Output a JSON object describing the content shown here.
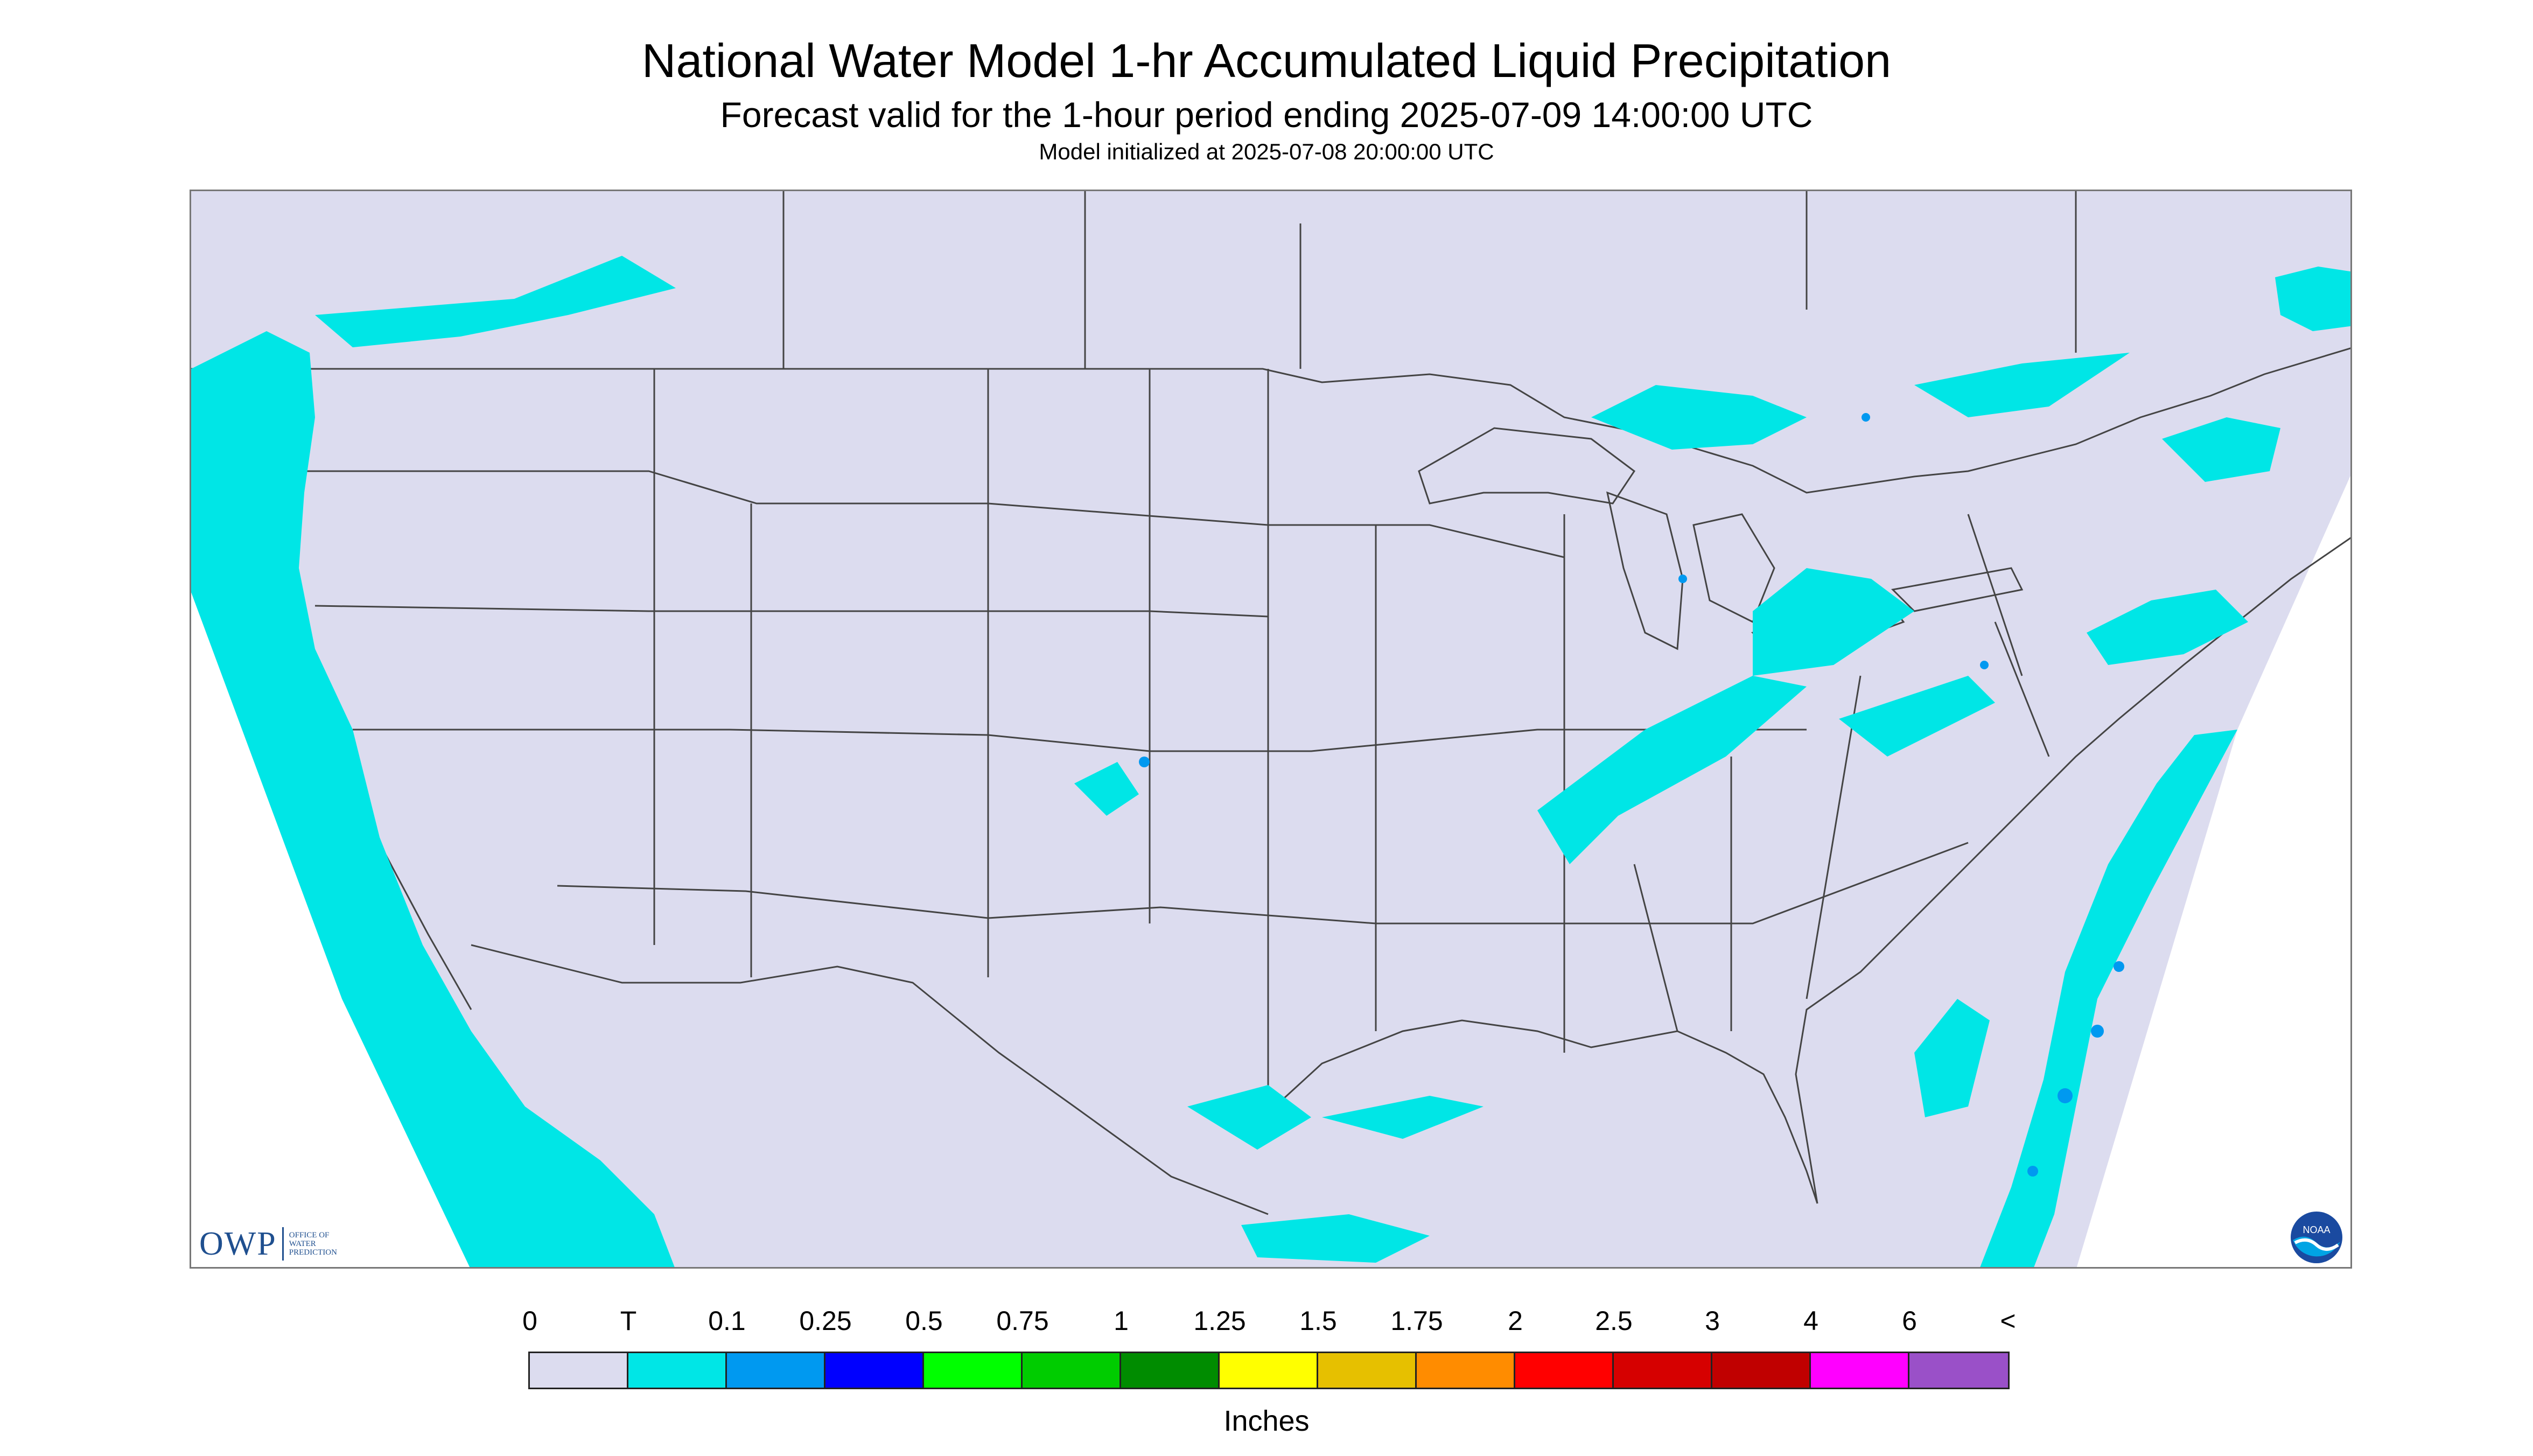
{
  "header": {
    "title": "National Water Model 1-hr Accumulated Liquid Precipitation",
    "subtitle": "Forecast valid for the 1-hour period ending 2025-07-09 14:00:00 UTC",
    "init_line": "Model initialized at 2025-07-08 20:00:00 UTC"
  },
  "logos": {
    "owp": {
      "mark": "OWP",
      "lines": [
        "OFFICE OF",
        "WATER",
        "PREDICTION"
      ]
    },
    "noaa": "NOAA"
  },
  "colors": {
    "background_nodata": "#ffffff",
    "land_zero": "#dcdcef",
    "trace": "#00e6e6",
    "boundary": "#444444"
  },
  "legend": {
    "labels": [
      "0",
      "T",
      "0.1",
      "0.25",
      "0.5",
      "0.75",
      "1",
      "1.25",
      "1.5",
      "1.75",
      "2",
      "2.5",
      "3",
      "4",
      "6",
      "<"
    ],
    "colors": [
      "#dcdcef",
      "#00e6e6",
      "#0099f0",
      "#0000ff",
      "#00ff00",
      "#00cc00",
      "#008c00",
      "#ffff00",
      "#e6c000",
      "#ff8c00",
      "#ff0000",
      "#d60000",
      "#c00000",
      "#ff00ff",
      "#9a50c8"
    ],
    "units": "Inches"
  }
}
